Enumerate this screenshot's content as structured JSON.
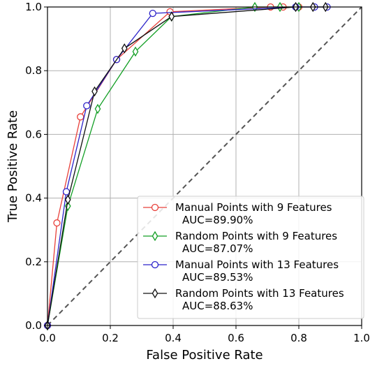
{
  "chart_data": {
    "type": "line",
    "title": "",
    "xlabel": "False Positive Rate",
    "ylabel": "True Positive Rate",
    "xlim": [
      0.0,
      1.0
    ],
    "ylim": [
      0.0,
      1.0
    ],
    "x_ticks": [
      "0.0",
      "0.2",
      "0.4",
      "0.6",
      "0.8",
      "1.0"
    ],
    "y_ticks": [
      "0.0",
      "0.2",
      "0.4",
      "0.6",
      "0.8",
      "1.0"
    ],
    "grid": true,
    "legend_position": "bottom-right",
    "reference_line": {
      "x": [
        0,
        1
      ],
      "y": [
        0,
        1
      ],
      "style": "dashed",
      "color": "#555555"
    },
    "series": [
      {
        "name": "Manual Points with 9 Features",
        "auc_label": "AUC=89.90%",
        "color": "#e8403a",
        "marker": "circle",
        "x": [
          0.0,
          0.03,
          0.105,
          0.22,
          0.39,
          0.71,
          0.75,
          0.8
        ],
        "y": [
          0.0,
          0.322,
          0.655,
          0.835,
          0.985,
          1.0,
          1.0,
          1.0
        ]
      },
      {
        "name": "Random Points with 9 Features",
        "auc_label": "AUC=87.07%",
        "color": "#139f25",
        "marker": "diamond",
        "x": [
          0.0,
          0.065,
          0.16,
          0.28,
          0.395,
          0.66,
          0.74,
          0.8
        ],
        "y": [
          0.0,
          0.375,
          0.68,
          0.86,
          0.97,
          1.0,
          1.0,
          1.0
        ]
      },
      {
        "name": "Manual Points with 13 Features",
        "auc_label": "AUC=89.53%",
        "color": "#2b22c9",
        "marker": "circle",
        "x": [
          0.0,
          0.06,
          0.125,
          0.22,
          0.335,
          0.79,
          0.85,
          0.89
        ],
        "y": [
          0.0,
          0.42,
          0.69,
          0.835,
          0.98,
          1.0,
          1.0,
          1.0
        ]
      },
      {
        "name": "Random Points with 13 Features",
        "auc_label": "AUC=88.63%",
        "color": "#111111",
        "marker": "diamond",
        "x": [
          0.0,
          0.065,
          0.15,
          0.245,
          0.395,
          0.79,
          0.845,
          0.885
        ],
        "y": [
          0.0,
          0.395,
          0.735,
          0.87,
          0.97,
          1.0,
          1.0,
          1.0
        ]
      }
    ]
  }
}
